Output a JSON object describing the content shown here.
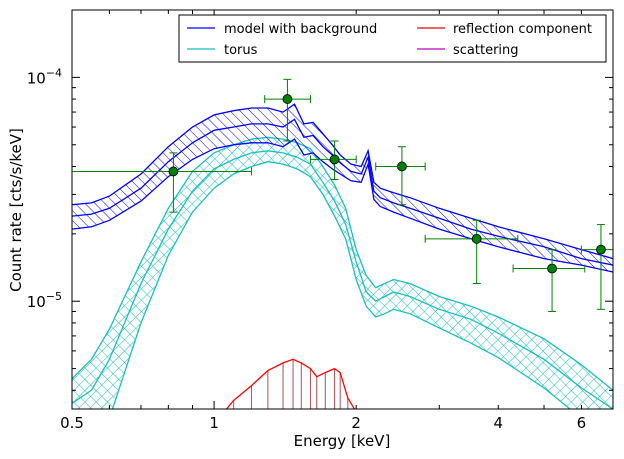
{
  "chart_data": {
    "type": "line",
    "x_scale": "log",
    "y_scale": "log",
    "xlabel": "Energy [keV]",
    "ylabel": "Count rate [cts/s/keV]",
    "xlim": [
      0.5,
      7.0
    ],
    "ylim": [
      3.3e-06,
      0.0002
    ],
    "x_ticks": [
      {
        "value": 0.5,
        "label": "0.5"
      },
      {
        "value": 1,
        "label": "1"
      },
      {
        "value": 2,
        "label": "2"
      },
      {
        "value": 4,
        "label": "4"
      },
      {
        "value": 6,
        "label": "6"
      }
    ],
    "y_ticks": [
      {
        "value": 1e-05,
        "base": "10",
        "exp": "−5"
      },
      {
        "value": 0.0001,
        "base": "10",
        "exp": "−4"
      }
    ],
    "grid": false,
    "legend": {
      "placement": "top-right",
      "entries": [
        {
          "label": "model with background",
          "color": "#0000ff"
        },
        {
          "label": "torus",
          "color": "#1abfbf"
        },
        {
          "label": "reflection component",
          "color": "#ff0000"
        },
        {
          "label": "scattering",
          "color": "#bf00bf"
        }
      ]
    },
    "series": [
      {
        "name": "model with background",
        "color": "#0000ff",
        "hatch": "diagonal",
        "x": [
          0.5,
          0.55,
          0.6,
          0.7,
          0.8,
          0.9,
          1.0,
          1.1,
          1.2,
          1.3,
          1.4,
          1.48,
          1.55,
          1.62,
          1.7,
          1.78,
          1.85,
          1.95,
          2.05,
          2.12,
          2.18,
          2.25,
          2.4,
          2.6,
          3.0,
          3.5,
          4.0,
          5.0,
          6.0,
          7.0
        ],
        "upper": [
          2.7e-05,
          2.75e-05,
          2.95e-05,
          3.7e-05,
          4.9e-05,
          6e-05,
          6.8e-05,
          7.1e-05,
          7.3e-05,
          7.3e-05,
          7e-05,
          7.6e-05,
          6.2e-05,
          6.3e-05,
          5.6e-05,
          5e-05,
          4.5e-05,
          4.1e-05,
          4e-05,
          4.7e-05,
          3.4e-05,
          3.2e-05,
          3.05e-05,
          2.9e-05,
          2.6e-05,
          2.35e-05,
          2.15e-05,
          1.9e-05,
          1.7e-05,
          1.55e-05
        ],
        "middle": [
          2.4e-05,
          2.45e-05,
          2.6e-05,
          3.2e-05,
          4.2e-05,
          5.1e-05,
          5.8e-05,
          6e-05,
          6.2e-05,
          6.2e-05,
          6e-05,
          6.5e-05,
          5.4e-05,
          5.5e-05,
          4.9e-05,
          4.5e-05,
          4.15e-05,
          3.8e-05,
          3.7e-05,
          4.4e-05,
          3.1e-05,
          2.9e-05,
          2.75e-05,
          2.6e-05,
          2.35e-05,
          2.1e-05,
          1.95e-05,
          1.75e-05,
          1.55e-05,
          1.45e-05
        ],
        "lower": [
          2.1e-05,
          2.15e-05,
          2.3e-05,
          2.8e-05,
          3.6e-05,
          4.3e-05,
          4.8e-05,
          5e-05,
          5.1e-05,
          5.1e-05,
          4.9e-05,
          5.3e-05,
          4.5e-05,
          4.6e-05,
          4.2e-05,
          3.9e-05,
          3.7e-05,
          3.45e-05,
          3.4e-05,
          4.1e-05,
          2.85e-05,
          2.65e-05,
          2.5e-05,
          2.35e-05,
          2.1e-05,
          1.9e-05,
          1.75e-05,
          1.55e-05,
          1.45e-05,
          1.35e-05
        ]
      },
      {
        "name": "torus",
        "color": "#1abfbf",
        "hatch": "cross",
        "x": [
          0.5,
          0.55,
          0.6,
          0.7,
          0.8,
          0.9,
          1.0,
          1.1,
          1.2,
          1.3,
          1.4,
          1.5,
          1.6,
          1.7,
          1.8,
          1.9,
          2.0,
          2.1,
          2.2,
          2.3,
          2.4,
          2.6,
          3.0,
          3.5,
          4.0,
          5.0,
          6.0,
          7.0
        ],
        "upper": [
          4.5e-06,
          5.5e-06,
          7.5e-06,
          1.5e-05,
          2.6e-05,
          3.8e-05,
          4.6e-05,
          5e-05,
          5.3e-05,
          5.4e-05,
          5.3e-05,
          5.1e-05,
          4.8e-05,
          4e-05,
          3.3e-05,
          2.6e-05,
          1.7e-05,
          1.3e-05,
          1.15e-05,
          1.2e-05,
          1.25e-05,
          1.2e-05,
          1.05e-05,
          9.5e-06,
          8.5e-06,
          6.8e-06,
          5.2e-06,
          4e-06
        ],
        "middle": [
          3.5e-06,
          4e-06,
          5.5e-06,
          1.2e-05,
          2.1e-05,
          3.1e-05,
          3.9e-05,
          4.3e-05,
          4.6e-05,
          4.7e-05,
          4.6e-05,
          4.4e-05,
          4.1e-05,
          3.4e-05,
          2.8e-05,
          2.2e-05,
          1.5e-05,
          1.1e-05,
          1e-05,
          1.05e-05,
          1.1e-05,
          1.05e-05,
          9.2e-06,
          8.3e-06,
          7.2e-06,
          5.5e-06,
          4.1e-06,
          3.3e-06
        ],
        "lower": [
          2e-06,
          2.5e-06,
          3e-06,
          8e-06,
          1.6e-05,
          2.5e-05,
          3.2e-05,
          3.7e-05,
          4e-05,
          4.2e-05,
          4.1e-05,
          3.9e-05,
          3.6e-05,
          3e-05,
          2.4e-05,
          1.9e-05,
          1.25e-05,
          9.5e-06,
          8.5e-06,
          8.8e-06,
          9.2e-06,
          8.8e-06,
          7.6e-06,
          6.5e-06,
          5.6e-06,
          4.1e-06,
          3e-06,
          2.4e-06
        ]
      },
      {
        "name": "reflection component",
        "color": "#ff0000",
        "x": [
          1.05,
          1.1,
          1.2,
          1.3,
          1.4,
          1.47,
          1.53,
          1.6,
          1.65,
          1.72,
          1.8,
          1.85,
          1.92,
          2.0
        ],
        "y": [
          3.2e-06,
          3.6e-06,
          4.2e-06,
          4.9e-06,
          5.3e-06,
          5.5e-06,
          5.3e-06,
          5e-06,
          4.6e-06,
          4.8e-06,
          5e-06,
          4.8e-06,
          3.7e-06,
          3.2e-06
        ]
      }
    ],
    "data_points": {
      "color": "#008000",
      "points": [
        {
          "x": 0.82,
          "y": 3.8e-05,
          "xlo": 0.5,
          "xhi": 1.2,
          "ylo": 2.5e-05,
          "yhi": 4.6e-05
        },
        {
          "x": 1.43,
          "y": 8e-05,
          "xlo": 1.28,
          "xhi": 1.6,
          "ylo": 5.2e-05,
          "yhi": 9.8e-05
        },
        {
          "x": 1.8,
          "y": 4.3e-05,
          "xlo": 1.6,
          "xhi": 2.0,
          "ylo": 3.5e-05,
          "yhi": 5.2e-05
        },
        {
          "x": 2.5,
          "y": 4e-05,
          "xlo": 2.2,
          "xhi": 2.8,
          "ylo": 2.7e-05,
          "yhi": 4.9e-05
        },
        {
          "x": 3.6,
          "y": 1.9e-05,
          "xlo": 2.8,
          "xhi": 4.4,
          "ylo": 1.2e-05,
          "yhi": 2.3e-05
        },
        {
          "x": 5.2,
          "y": 1.4e-05,
          "xlo": 4.3,
          "xhi": 6.1,
          "ylo": 9e-06,
          "yhi": 1.7e-05
        },
        {
          "x": 6.6,
          "y": 1.7e-05,
          "xlo": 6.0,
          "xhi": 7.0,
          "ylo": 9.2e-06,
          "yhi": 2.2e-05
        }
      ]
    }
  }
}
